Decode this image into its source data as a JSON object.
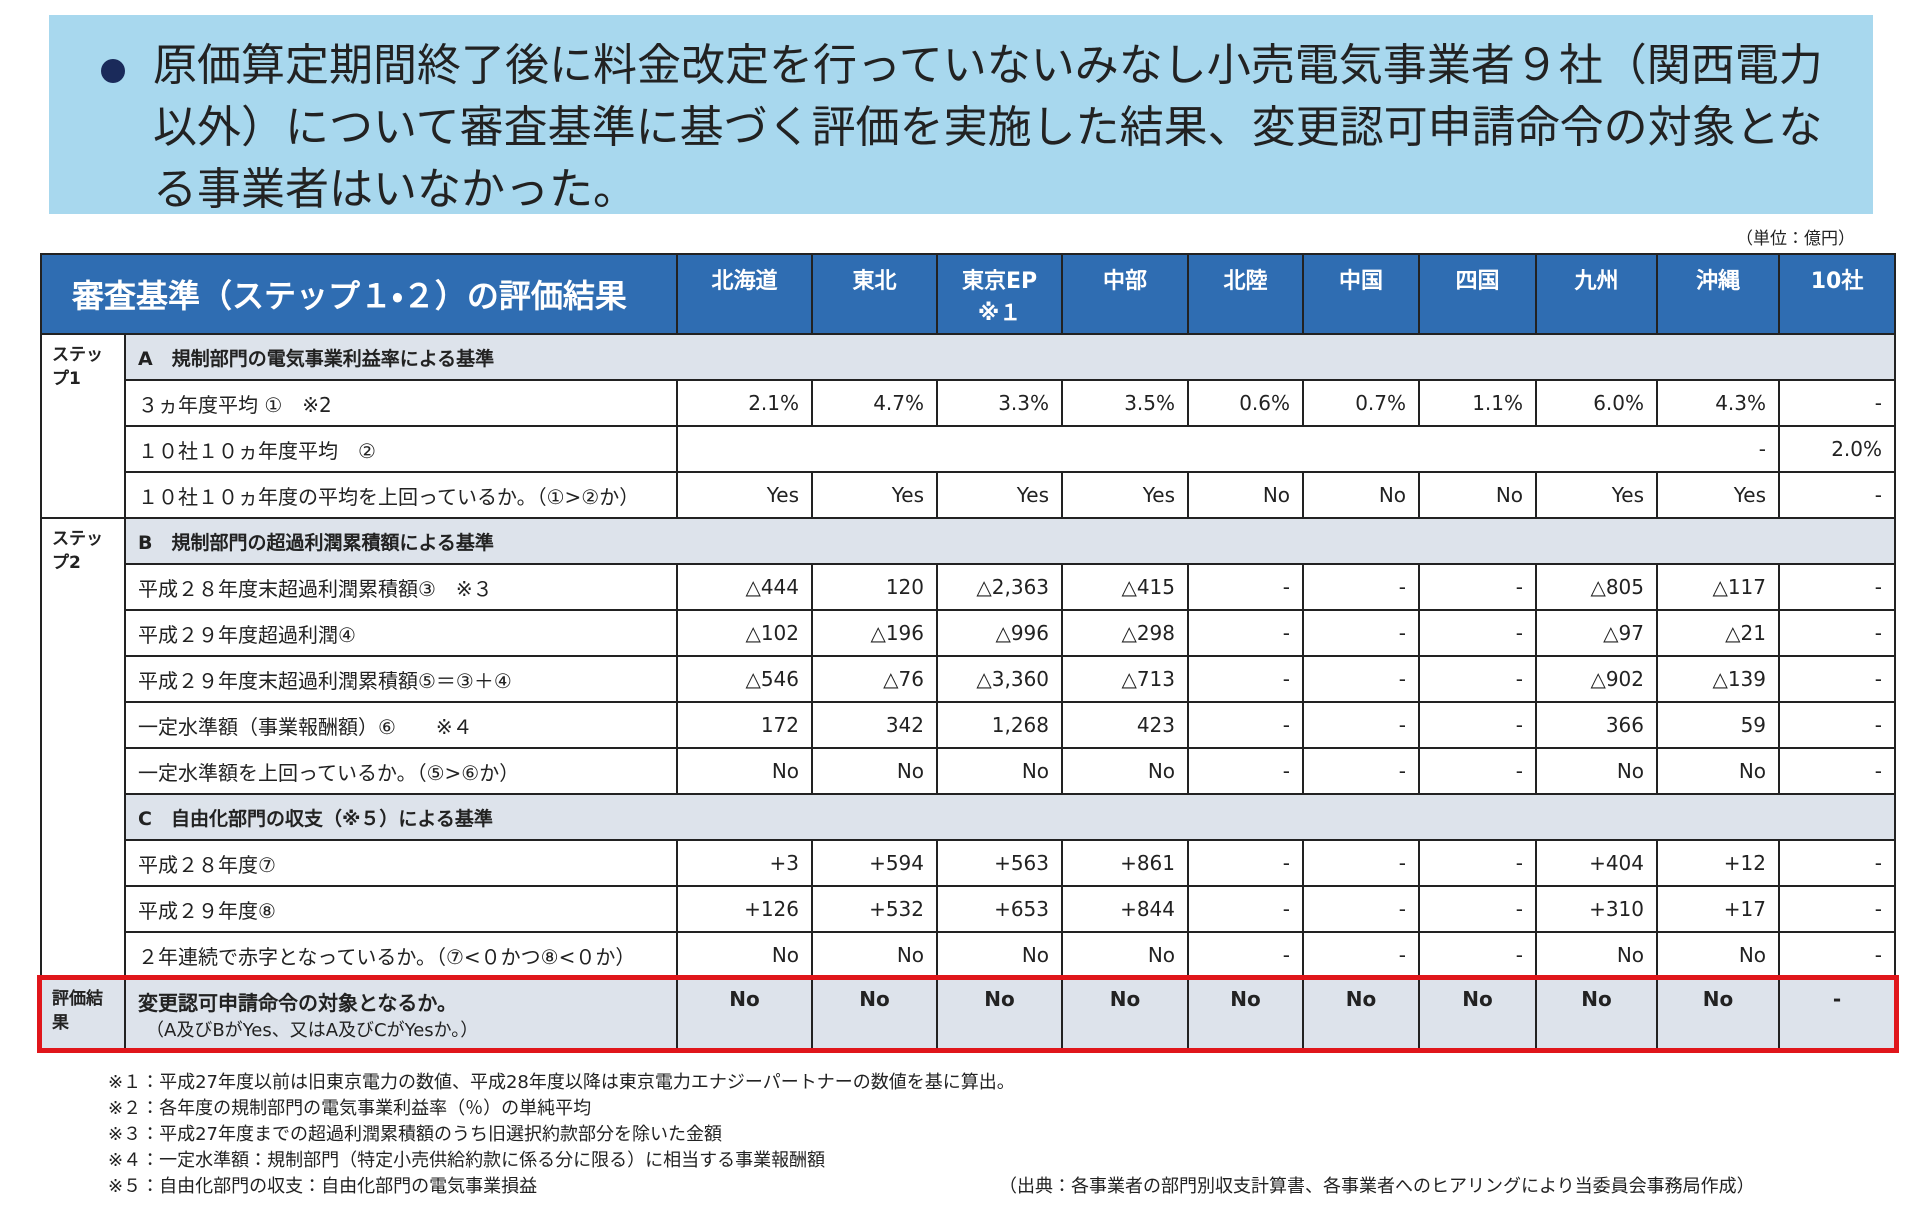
{
  "header": {
    "text": "原価算定期間終了後に料金改定を行っていないみなし小売電気事業者９社（関西電力以外）について審査基準に基づく評価を実施した結果、変更認可申請命令の対象となる事業者はいなかった。"
  },
  "unit": "（単位：億円）",
  "table": {
    "title": "審査基準（ステップ１・２）の評価結果",
    "columns": [
      "北海道",
      "東北",
      "東京EP\n※１",
      "中部",
      "北陸",
      "中国",
      "四国",
      "九州",
      "沖縄",
      "10社"
    ],
    "steps": [
      {
        "label": "ステップ1",
        "sections": [
          {
            "title": "A　規制部門の電気事業利益率による基準",
            "rows": [
              {
                "label": "３ヵ年度平均 ①　※2",
                "values": [
                  "2.1%",
                  "4.7%",
                  "3.3%",
                  "3.5%",
                  "0.6%",
                  "0.7%",
                  "1.1%",
                  "6.0%",
                  "4.3%",
                  "-"
                ]
              },
              {
                "label": "１０社１０ヵ年度平均　②",
                "values": [
                  "-",
                  "2.0%"
                ]
              },
              {
                "label": "１０社１０ヵ年度の平均を上回っているか。（①>②か）",
                "values": [
                  "Yes",
                  "Yes",
                  "Yes",
                  "Yes",
                  "No",
                  "No",
                  "No",
                  "Yes",
                  "Yes",
                  "-"
                ]
              }
            ]
          }
        ]
      },
      {
        "label": "ステップ2",
        "sections": [
          {
            "title": "B　規制部門の超過利潤累積額による基準",
            "rows": [
              {
                "label": "平成２８年度末超過利潤累積額③　※３",
                "values": [
                  "△444",
                  "120",
                  "△2,363",
                  "△415",
                  "-",
                  "-",
                  "-",
                  "△805",
                  "△117",
                  "-"
                ]
              },
              {
                "label": "平成２９年度超過利潤④",
                "values": [
                  "△102",
                  "△196",
                  "△996",
                  "△298",
                  "-",
                  "-",
                  "-",
                  "△97",
                  "△21",
                  "-"
                ]
              },
              {
                "label": "平成２９年度末超過利潤累積額⑤＝③＋④",
                "values": [
                  "△546",
                  "△76",
                  "△3,360",
                  "△713",
                  "-",
                  "-",
                  "-",
                  "△902",
                  "△139",
                  "-"
                ]
              },
              {
                "label": "一定水準額（事業報酬額）⑥　　※４",
                "values": [
                  "172",
                  "342",
                  "1,268",
                  "423",
                  "-",
                  "-",
                  "-",
                  "366",
                  "59",
                  "-"
                ]
              },
              {
                "label": "一定水準額を上回っているか。（⑤>⑥か）",
                "values": [
                  "No",
                  "No",
                  "No",
                  "No",
                  "-",
                  "-",
                  "-",
                  "No",
                  "No",
                  "-"
                ]
              }
            ]
          },
          {
            "title": "C　自由化部門の収支（※５）による基準",
            "rows": [
              {
                "label": "平成２８年度⑦",
                "values": [
                  "+3",
                  "+594",
                  "+563",
                  "+861",
                  "-",
                  "-",
                  "-",
                  "+404",
                  "+12",
                  "-"
                ]
              },
              {
                "label": "平成２９年度⑧",
                "values": [
                  "+126",
                  "+532",
                  "+653",
                  "+844",
                  "-",
                  "-",
                  "-",
                  "+310",
                  "+17",
                  "-"
                ]
              },
              {
                "label": "２年連続で赤字となっているか。（⑦<０かつ⑧<０か）",
                "values": [
                  "No",
                  "No",
                  "No",
                  "No",
                  "-",
                  "-",
                  "-",
                  "No",
                  "No",
                  "-"
                ]
              }
            ]
          }
        ]
      }
    ],
    "result": {
      "label": "評価結果",
      "question": "変更認可申請命令の対象となるか。",
      "condition": "（A及びBがYes、又はA及びCがYesか。）",
      "values": [
        "No",
        "No",
        "No",
        "No",
        "No",
        "No",
        "No",
        "No",
        "No",
        "-"
      ]
    }
  },
  "footnotes": [
    "※１：平成27年度以前は旧東京電力の数値、平成28年度以降は東京電力エナジーパートナーの数値を基に算出。",
    "※２：各年度の規制部門の電気事業利益率（％）の単純平均",
    "※３：平成27年度までの超過利潤累積額のうち旧選択約款部分を除いた金額",
    "※４：一定水準額：規制部門（特定小売供給約款に係る分に限る）に相当する事業報酬額",
    "※５：自由化部門の収支：自由化部門の電気事業損益"
  ],
  "source": "（出典：各事業者の部門別収支計算書、各事業者へのヒアリングにより当委員会事務局作成）"
}
